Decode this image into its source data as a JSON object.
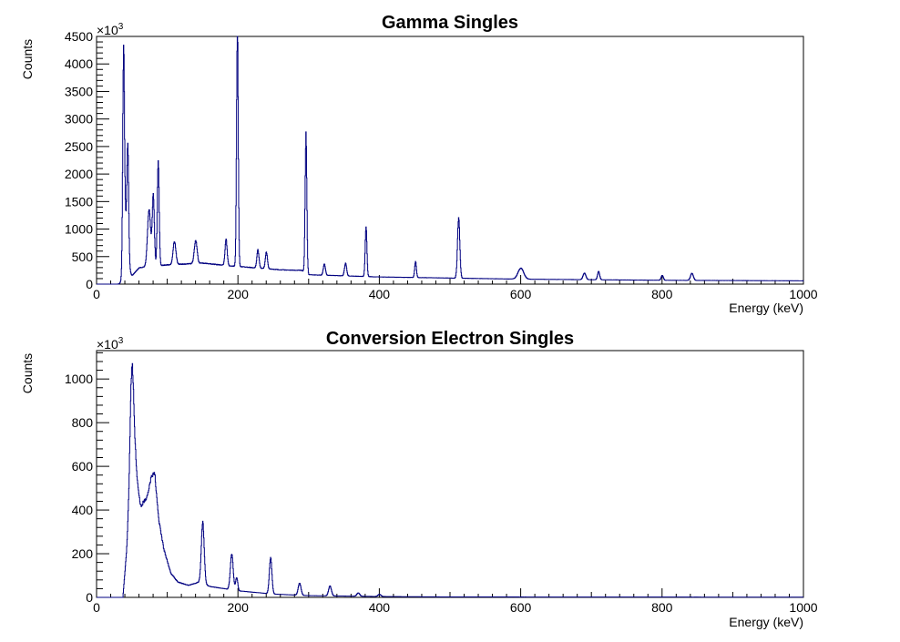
{
  "colors": {
    "line": "#000080",
    "axis": "#000000",
    "background": "#ffffff"
  },
  "chart_data": [
    {
      "type": "line",
      "title": "Gamma Singles",
      "xlabel": "Energy (keV)",
      "ylabel": "Counts",
      "multiplier": "×10",
      "multiplier_exp": "3",
      "xlim": [
        0,
        1000
      ],
      "ylim": [
        0,
        4500
      ],
      "xticks": [
        0,
        200,
        400,
        600,
        800,
        1000
      ],
      "yticks": [
        0,
        500,
        1000,
        1500,
        2000,
        2500,
        3000,
        3500,
        4000,
        4500
      ],
      "grid": false,
      "baseline": [
        [
          0,
          0
        ],
        [
          35,
          0
        ],
        [
          38,
          200
        ],
        [
          50,
          150
        ],
        [
          60,
          300
        ],
        [
          100,
          350
        ],
        [
          150,
          380
        ],
        [
          190,
          330
        ],
        [
          260,
          260
        ],
        [
          290,
          250
        ],
        [
          300,
          170
        ],
        [
          400,
          130
        ],
        [
          500,
          110
        ],
        [
          600,
          90
        ],
        [
          800,
          70
        ],
        [
          1000,
          60
        ]
      ],
      "peaks": [
        {
          "x": 38,
          "y": 3600,
          "w": 1.2
        },
        {
          "x": 44,
          "y": 1820,
          "w": 1.2
        },
        {
          "x": 41,
          "y": 900,
          "w": 3
        },
        {
          "x": 74,
          "y": 1050,
          "w": 2.2
        },
        {
          "x": 80,
          "y": 1280,
          "w": 1.5
        },
        {
          "x": 87,
          "y": 1920,
          "w": 1.3
        },
        {
          "x": 110,
          "y": 420,
          "w": 2
        },
        {
          "x": 140,
          "y": 420,
          "w": 2
        },
        {
          "x": 183,
          "y": 470,
          "w": 1.5
        },
        {
          "x": 199,
          "y": 4350,
          "w": 1.2
        },
        {
          "x": 228,
          "y": 330,
          "w": 1.5
        },
        {
          "x": 240,
          "y": 300,
          "w": 1.5
        },
        {
          "x": 296,
          "y": 2510,
          "w": 1.2
        },
        {
          "x": 322,
          "y": 200,
          "w": 1.5
        },
        {
          "x": 352,
          "y": 230,
          "w": 1.5
        },
        {
          "x": 381,
          "y": 920,
          "w": 1.2
        },
        {
          "x": 451,
          "y": 290,
          "w": 1.2
        },
        {
          "x": 512,
          "y": 1100,
          "w": 1.6
        },
        {
          "x": 600,
          "y": 200,
          "w": 4
        },
        {
          "x": 690,
          "y": 120,
          "w": 2
        },
        {
          "x": 710,
          "y": 150,
          "w": 1.5
        },
        {
          "x": 800,
          "y": 90,
          "w": 1.5
        },
        {
          "x": 842,
          "y": 130,
          "w": 2
        }
      ]
    },
    {
      "type": "line",
      "title": "Conversion Electron Singles",
      "xlabel": "Energy (keV)",
      "ylabel": "Counts",
      "multiplier": "×10",
      "multiplier_exp": "3",
      "xlim": [
        0,
        1000
      ],
      "ylim": [
        0,
        1130
      ],
      "xticks": [
        0,
        200,
        400,
        600,
        800,
        1000
      ],
      "yticks": [
        0,
        200,
        400,
        600,
        800,
        1000
      ],
      "grid": false,
      "baseline": [
        [
          0,
          0
        ],
        [
          37,
          0
        ],
        [
          42,
          200
        ],
        [
          48,
          550
        ],
        [
          55,
          600
        ],
        [
          62,
          420
        ],
        [
          70,
          450
        ],
        [
          78,
          560
        ],
        [
          82,
          570
        ],
        [
          88,
          350
        ],
        [
          95,
          220
        ],
        [
          105,
          110
        ],
        [
          115,
          70
        ],
        [
          130,
          55
        ],
        [
          145,
          70
        ],
        [
          160,
          50
        ],
        [
          200,
          30
        ],
        [
          250,
          15
        ],
        [
          300,
          8
        ],
        [
          400,
          4
        ],
        [
          500,
          2
        ],
        [
          1000,
          1
        ]
      ],
      "peaks": [
        {
          "x": 50,
          "y": 500,
          "w": 2.5
        },
        {
          "x": 150,
          "y": 280,
          "w": 2
        },
        {
          "x": 191,
          "y": 165,
          "w": 2
        },
        {
          "x": 198,
          "y": 60,
          "w": 1.5
        },
        {
          "x": 246,
          "y": 165,
          "w": 1.8
        },
        {
          "x": 287,
          "y": 55,
          "w": 2
        },
        {
          "x": 330,
          "y": 45,
          "w": 2
        },
        {
          "x": 370,
          "y": 15,
          "w": 2
        },
        {
          "x": 400,
          "y": 10,
          "w": 2
        }
      ]
    }
  ]
}
